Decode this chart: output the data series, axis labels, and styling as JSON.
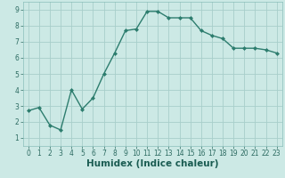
{
  "xlabel": "Humidex (Indice chaleur)",
  "x": [
    0,
    1,
    2,
    3,
    4,
    5,
    6,
    7,
    8,
    9,
    10,
    11,
    12,
    13,
    14,
    15,
    16,
    17,
    18,
    19,
    20,
    21,
    22,
    23
  ],
  "y": [
    2.7,
    2.9,
    1.8,
    1.5,
    4.0,
    2.8,
    3.5,
    5.0,
    6.3,
    7.7,
    7.8,
    8.9,
    8.9,
    8.5,
    8.5,
    8.5,
    7.7,
    7.4,
    7.2,
    6.6,
    6.6,
    6.6,
    6.5,
    6.3
  ],
  "line_color": "#2d7d6e",
  "marker": "D",
  "marker_size": 2.0,
  "linewidth": 1.0,
  "bg_color": "#cce9e5",
  "grid_color": "#a8ceca",
  "ylim": [
    0.5,
    9.5
  ],
  "xlim": [
    -0.5,
    23.5
  ],
  "yticks": [
    1,
    2,
    3,
    4,
    5,
    6,
    7,
    8,
    9
  ],
  "xticks": [
    0,
    1,
    2,
    3,
    4,
    5,
    6,
    7,
    8,
    9,
    10,
    11,
    12,
    13,
    14,
    15,
    16,
    17,
    18,
    19,
    20,
    21,
    22,
    23
  ],
  "tick_fontsize": 5.5,
  "xlabel_fontsize": 7.5
}
